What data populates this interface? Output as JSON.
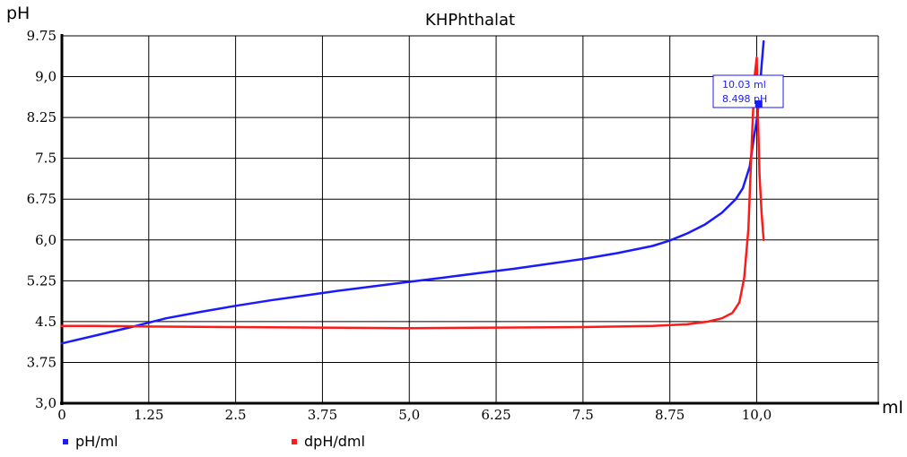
{
  "chart_data": {
    "type": "line",
    "title": "KHPhthalat",
    "xlabel": "ml",
    "ylabel": "pH",
    "xlim": [
      0,
      11.75
    ],
    "ylim": [
      3.0,
      9.75
    ],
    "x_ticks": [
      {
        "value": 0,
        "label": "0"
      },
      {
        "value": 1.25,
        "label": "1.25"
      },
      {
        "value": 2.5,
        "label": "2.5"
      },
      {
        "value": 3.75,
        "label": "3.75"
      },
      {
        "value": 5.0,
        "label": "5,0"
      },
      {
        "value": 6.25,
        "label": "6.25"
      },
      {
        "value": 7.5,
        "label": "7.5"
      },
      {
        "value": 8.75,
        "label": "8.75"
      },
      {
        "value": 10.0,
        "label": "10,0"
      }
    ],
    "y_ticks": [
      {
        "value": 3.0,
        "label": "3,0"
      },
      {
        "value": 3.75,
        "label": "3.75"
      },
      {
        "value": 4.5,
        "label": "4.5"
      },
      {
        "value": 5.25,
        "label": "5.25"
      },
      {
        "value": 6.0,
        "label": "6,0"
      },
      {
        "value": 6.75,
        "label": "6.75"
      },
      {
        "value": 7.5,
        "label": "7.5"
      },
      {
        "value": 8.25,
        "label": "8.25"
      },
      {
        "value": 9.0,
        "label": "9,0"
      },
      {
        "value": 9.75,
        "label": "9.75"
      }
    ],
    "grid": true,
    "legend_position": "bottom-left",
    "series": [
      {
        "name": "pH/ml",
        "color": "#1a1aff",
        "x": [
          0,
          0.5,
          1.0,
          1.25,
          1.5,
          2.0,
          2.5,
          3.0,
          3.5,
          4.0,
          4.5,
          5.0,
          5.5,
          6.0,
          6.5,
          7.0,
          7.5,
          8.0,
          8.5,
          8.75,
          9.0,
          9.25,
          9.5,
          9.7,
          9.8,
          9.9,
          9.95,
          10.0,
          10.03,
          10.07,
          10.1
        ],
        "y": [
          4.1,
          4.25,
          4.4,
          4.48,
          4.56,
          4.68,
          4.79,
          4.89,
          4.98,
          5.07,
          5.15,
          5.23,
          5.31,
          5.39,
          5.47,
          5.56,
          5.65,
          5.76,
          5.89,
          5.99,
          6.12,
          6.28,
          6.5,
          6.75,
          6.95,
          7.35,
          7.8,
          8.2,
          8.498,
          9.2,
          9.65
        ]
      },
      {
        "name": "dpH/dml",
        "color": "#ff1a1a",
        "x": [
          0,
          0.5,
          1.25,
          2.5,
          3.75,
          5.0,
          6.25,
          7.5,
          8.5,
          9.0,
          9.3,
          9.5,
          9.65,
          9.75,
          9.82,
          9.88,
          9.93,
          9.97,
          10.0,
          10.02,
          10.04,
          10.07,
          10.1
        ],
        "y": [
          4.42,
          4.42,
          4.41,
          4.4,
          4.39,
          4.38,
          4.39,
          4.4,
          4.42,
          4.45,
          4.5,
          4.56,
          4.66,
          4.85,
          5.3,
          6.2,
          7.8,
          9.0,
          9.35,
          8.2,
          7.2,
          6.5,
          6.0
        ]
      }
    ],
    "annotations": [
      {
        "x": 10.03,
        "y": 8.498,
        "line1": "10.03 ml",
        "line2": "8.498 pH",
        "color": "#1a1aff"
      }
    ]
  }
}
